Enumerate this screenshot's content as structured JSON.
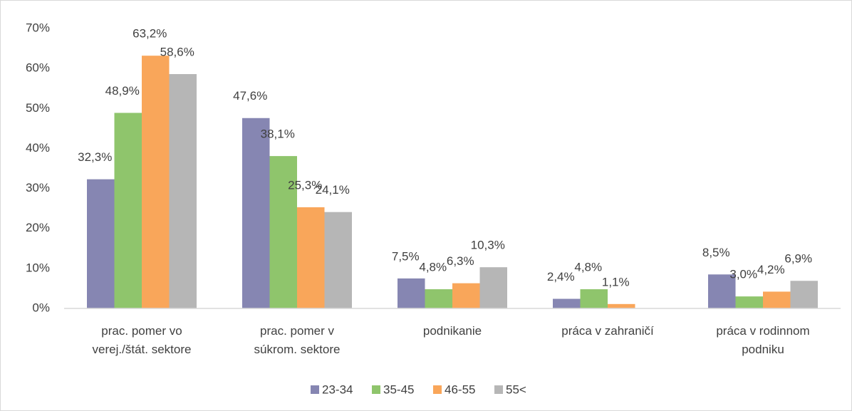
{
  "chart_data": {
    "type": "bar",
    "categories": [
      "prac. pomer vo\nverej./štát. sektore",
      "prac. pomer v\nsúkrom. sektore",
      "podnikanie",
      "práca v zahraničí",
      "práca v rodinnom\npodniku"
    ],
    "series": [
      {
        "name": "23-34",
        "color": "#8686b2",
        "values": [
          32.3,
          47.6,
          7.5,
          2.4,
          8.5
        ],
        "value_labels": [
          "32,3%",
          "47,6%",
          "7,5%",
          "2,4%",
          "8,5%"
        ]
      },
      {
        "name": "35-45",
        "color": "#8fc56c",
        "values": [
          48.9,
          38.1,
          4.8,
          4.8,
          3.0
        ],
        "value_labels": [
          "48,9%",
          "38,1%",
          "4,8%",
          "4,8%",
          "3,0%"
        ]
      },
      {
        "name": "46-55",
        "color": "#f9a65a",
        "values": [
          63.2,
          25.3,
          6.3,
          1.1,
          4.2
        ],
        "value_labels": [
          "63,2%",
          "25,3%",
          "6,3%",
          "1,1%",
          "4,2%"
        ]
      },
      {
        "name": "55<",
        "color": "#b6b6b6",
        "values": [
          58.6,
          24.1,
          10.3,
          null,
          6.9
        ],
        "value_labels": [
          "58,6%",
          "24,1%",
          "10,3%",
          null,
          "6,9%"
        ]
      }
    ],
    "ylim": [
      0,
      70
    ],
    "yticks": [
      {
        "value": 0,
        "label": "0%"
      },
      {
        "value": 10,
        "label": "10%"
      },
      {
        "value": 20,
        "label": "20%"
      },
      {
        "value": 30,
        "label": "30%"
      },
      {
        "value": 40,
        "label": "40%"
      },
      {
        "value": 50,
        "label": "50%"
      },
      {
        "value": 60,
        "label": "60%"
      },
      {
        "value": 70,
        "label": "70%"
      }
    ],
    "grid": false,
    "legend": "bottom"
  }
}
